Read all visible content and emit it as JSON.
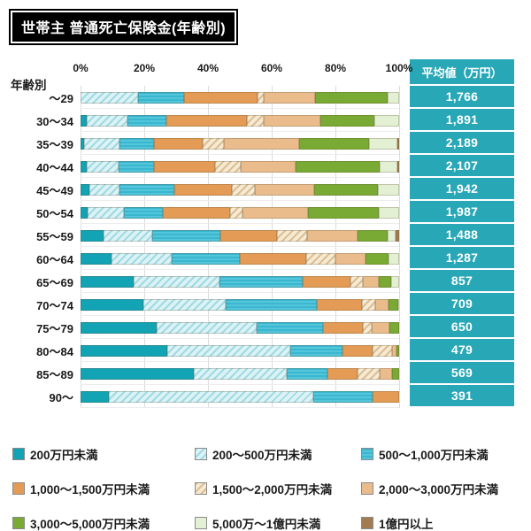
{
  "title": "世帯主 普通死亡保険金(年齢別)",
  "axis": {
    "row_header": "年齢別",
    "ticks": [
      "0%",
      "20%",
      "40%",
      "60%",
      "80%",
      "100%"
    ]
  },
  "avg_panel": {
    "header": "平均値（万円）"
  },
  "colors": {
    "panel_teal": "#28a7b6",
    "title_bg": "#000000",
    "title_fg": "#ffffff"
  },
  "chart_data": {
    "type": "bar",
    "orientation": "horizontal-stacked",
    "unit": "%",
    "xlim": [
      0,
      100
    ],
    "grid": "vertical, every 20%",
    "categories": [
      "～29",
      "30～34",
      "35～39",
      "40～44",
      "45～49",
      "50～54",
      "55～59",
      "60～64",
      "65～69",
      "70～74",
      "75～79",
      "80～84",
      "85～89",
      "90～"
    ],
    "series": [
      {
        "name": "200万円未満",
        "color": "#12a3b4",
        "pattern": "solid",
        "values": [
          0,
          1.9,
          1.2,
          1.9,
          2.8,
          2.3,
          7.2,
          9.7,
          16.7,
          19.7,
          23.9,
          27.3,
          35.6,
          9.0
        ]
      },
      {
        "name": "200～500万円未満",
        "color": "#ddf2f5",
        "pattern": "hatch-teal",
        "values": [
          18.1,
          12.7,
          10.9,
          10.0,
          9.5,
          11.4,
          15.3,
          19.0,
          27.0,
          25.9,
          31.4,
          38.6,
          29.2,
          64.1
        ]
      },
      {
        "name": "500～1,000万円未満",
        "color": "#44bfd6",
        "pattern": "hstripe-cyan",
        "values": [
          14.3,
          12.3,
          10.9,
          11.1,
          17.1,
          12.2,
          21.5,
          21.3,
          25.9,
          28.5,
          20.8,
          16.3,
          12.8,
          18.6
        ]
      },
      {
        "name": "1,000～1,500万円未満",
        "color": "#e39b55",
        "pattern": "solid",
        "values": [
          23.2,
          25.4,
          15.3,
          19.1,
          18.0,
          21.1,
          17.6,
          20.8,
          15.1,
          14.3,
          12.5,
          9.5,
          9.3,
          8.3
        ]
      },
      {
        "name": "1,500～2,000万円未満",
        "color": "#f5ead4",
        "pattern": "hatch-tan",
        "values": [
          2.0,
          5.3,
          6.7,
          8.2,
          7.2,
          3.9,
          9.5,
          9.3,
          4.0,
          4.2,
          2.9,
          6.0,
          7.1,
          0
        ]
      },
      {
        "name": "2,000～3,000万円未満",
        "color": "#eabc8c",
        "pattern": "solid",
        "values": [
          16.0,
          17.6,
          23.6,
          17.1,
          18.8,
          20.4,
          15.8,
          9.3,
          4.8,
          4.2,
          5.5,
          1.4,
          3.7,
          0
        ]
      },
      {
        "name": "3,000～5,000万円未満",
        "color": "#79aa33",
        "pattern": "solid",
        "values": [
          22.7,
          16.9,
          22.0,
          26.5,
          19.9,
          22.2,
          9.6,
          7.4,
          3.9,
          2.8,
          3.0,
          0.9,
          2.3,
          0
        ]
      },
      {
        "name": "5,000万～1億円未満",
        "color": "#e4f0d4",
        "pattern": "solid",
        "values": [
          3.7,
          7.9,
          8.8,
          5.6,
          6.7,
          6.5,
          2.4,
          3.2,
          2.6,
          0.4,
          0,
          0,
          0,
          0
        ]
      },
      {
        "name": "1億円以上",
        "color": "#a27c50",
        "pattern": "solid",
        "values": [
          0,
          0,
          0.6,
          0.5,
          0,
          0,
          1.1,
          0,
          0,
          0,
          0,
          0,
          0,
          0
        ]
      }
    ],
    "averages": {
      "label": "平均値（万円）",
      "values": [
        "1,766",
        "1,891",
        "2,189",
        "2,107",
        "1,942",
        "1,987",
        "1,488",
        "1,287",
        "857",
        "709",
        "650",
        "479",
        "569",
        "391"
      ]
    }
  }
}
